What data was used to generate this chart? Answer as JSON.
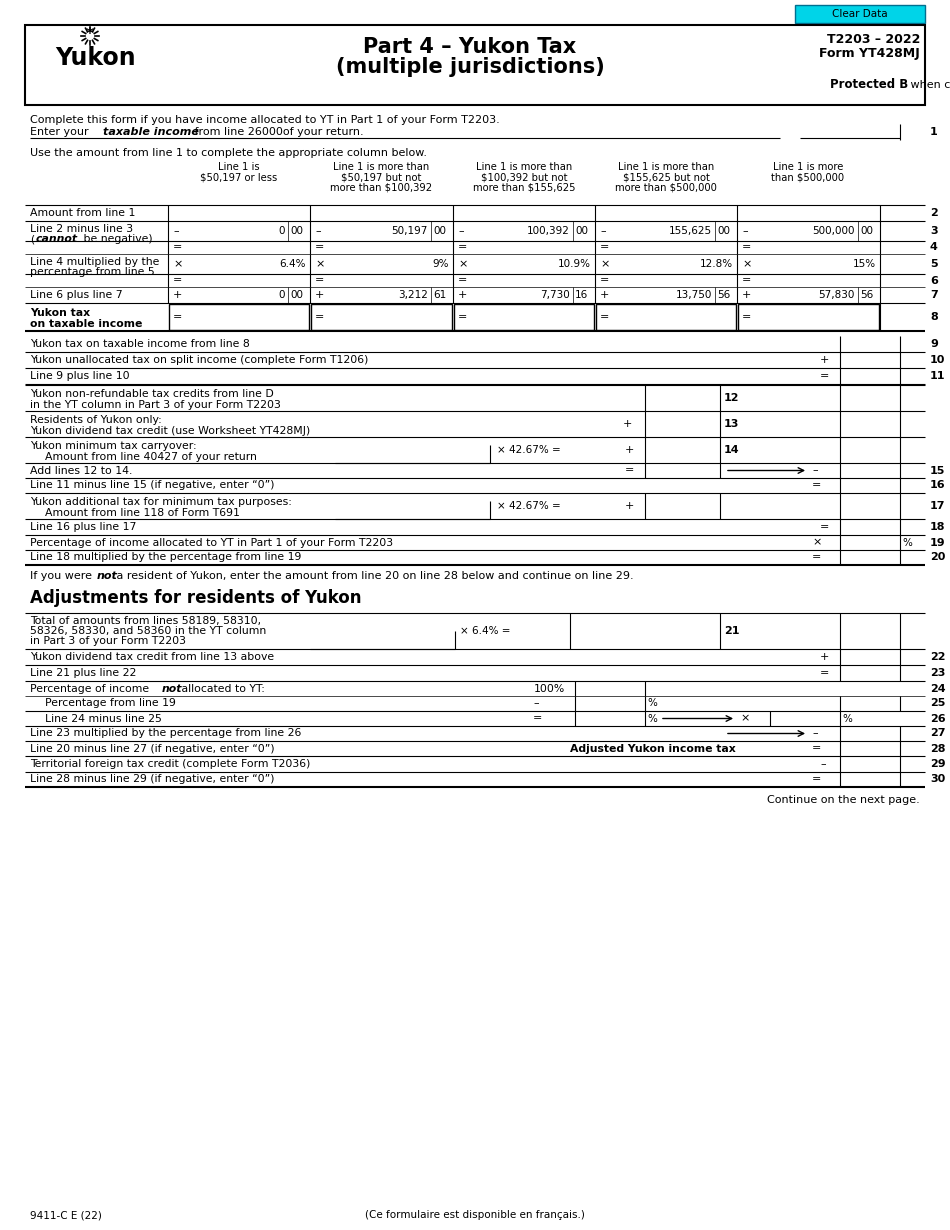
{
  "title_main": "Part 4 – Yukon Tax",
  "title_sub": "(multiple jurisdictions)",
  "form_number": "T2203 – 2022",
  "form_id": "Form YT428MJ",
  "clear_data_btn": "Clear Data",
  "intro1": "Complete this form if you have income allocated to YT in Part 1 of your Form T2203.",
  "use_amount_text": "Use the amount from line 1 to complete the appropriate column below.",
  "col_headers": [
    [
      "Line 1 is",
      "$50,197 or less"
    ],
    [
      "Line 1 is more than",
      "$50,197 but not",
      "more than $100,392"
    ],
    [
      "Line 1 is more than",
      "$100,392 but not",
      "more than $155,625"
    ],
    [
      "Line 1 is more than",
      "$155,625 but not",
      "more than $500,000"
    ],
    [
      "Line 1 is more",
      "than $500,000"
    ]
  ],
  "row3_vals": [
    "0|00",
    "50,197|00",
    "100,392|00",
    "155,625|00",
    "500,000|00"
  ],
  "row5_pcts": [
    "6.4%",
    "9%",
    "10.9%",
    "12.8%",
    "15%"
  ],
  "row7_vals": [
    "0|00",
    "3,212|61",
    "7,730|16",
    "13,750|56",
    "57,830|56"
  ],
  "footer_left": "9411-C E (22)",
  "footer_center": "(Ce formulaire est disponible en français.)",
  "continue_text": "Continue on the next page.",
  "adj_section_title": "Adjustments for residents of Yukon"
}
